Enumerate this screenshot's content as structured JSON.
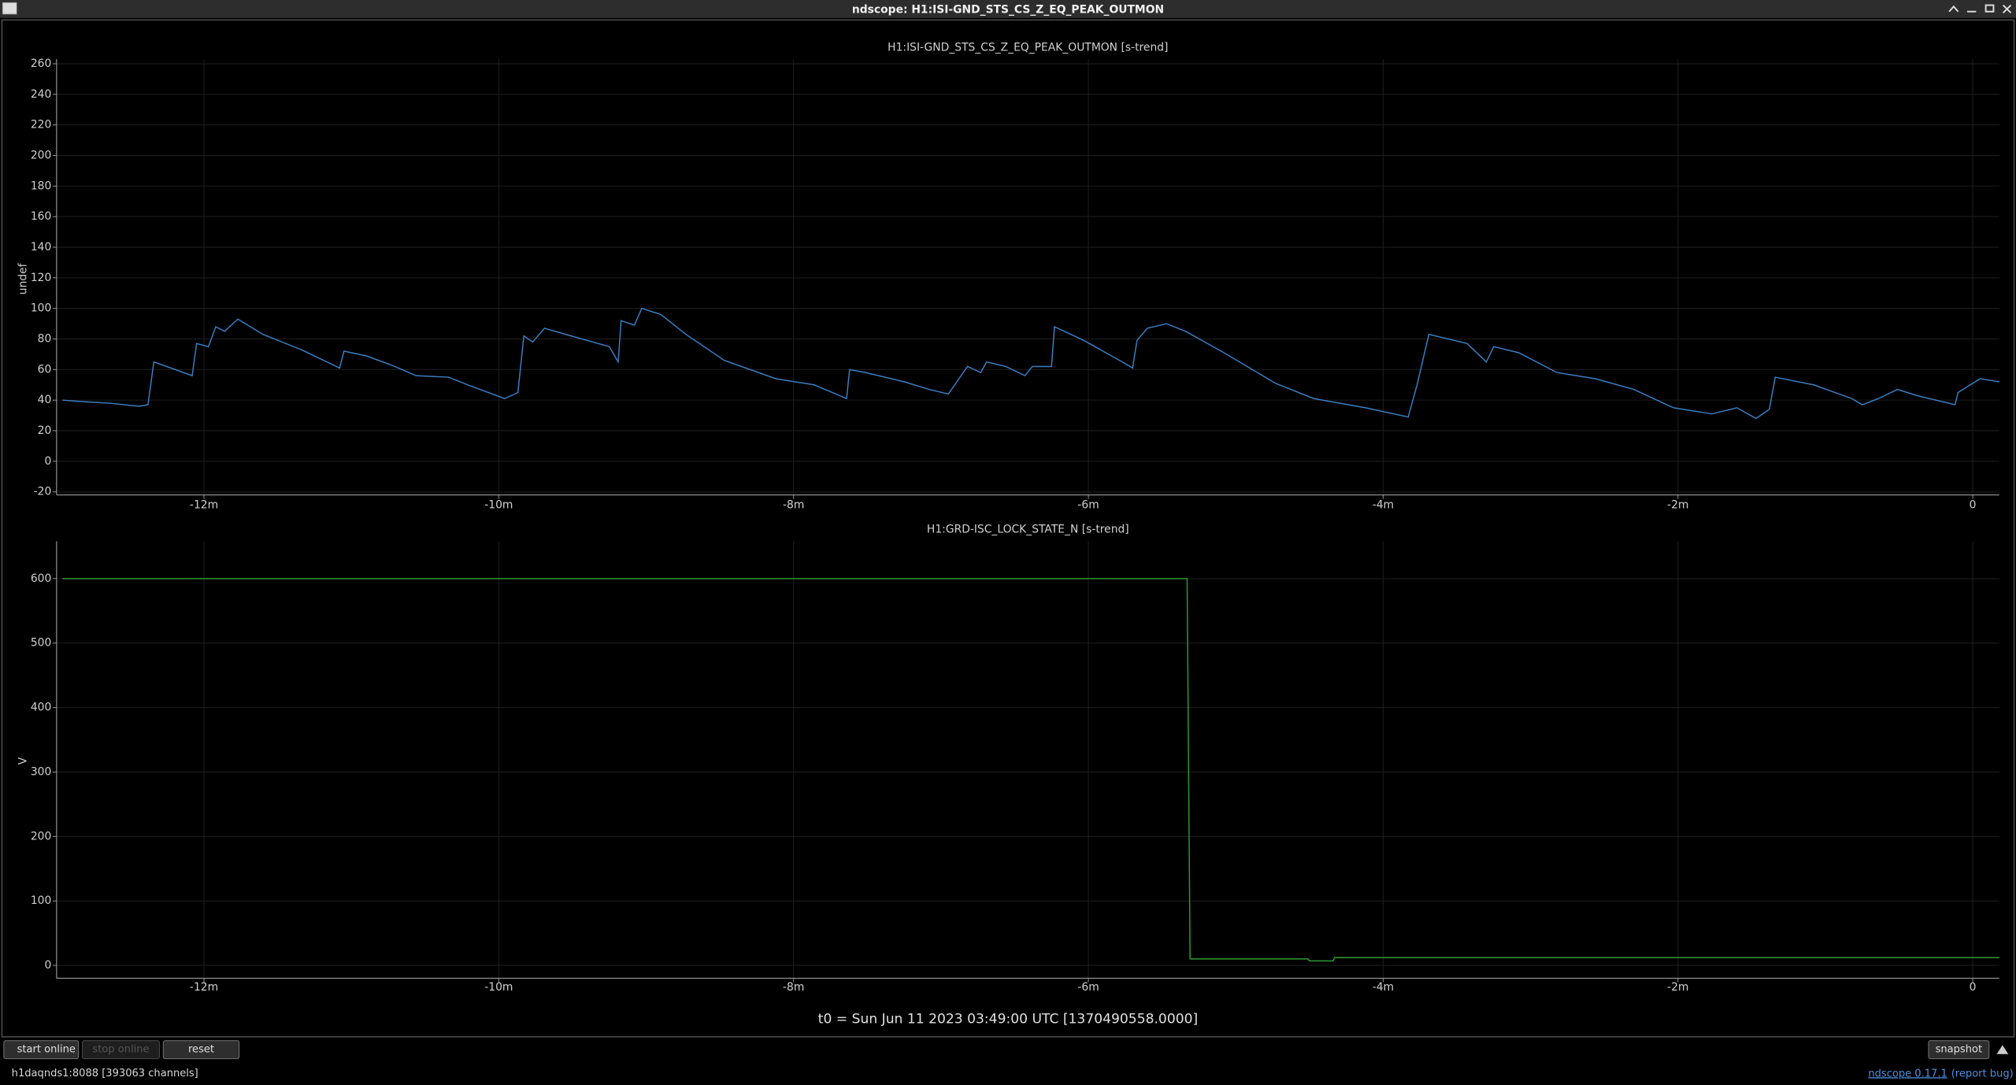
{
  "window": {
    "title": "ndscope: H1:ISI-GND_STS_CS_Z_EQ_PEAK_OUTMON"
  },
  "chart_data": [
    {
      "type": "line",
      "title": "H1:ISI-GND_STS_CS_Z_EQ_PEAK_OUTMON [s-trend]",
      "ylabel": "undef",
      "x": [
        -12.96,
        -12.82,
        -12.64,
        -12.44,
        -12.38,
        -12.34,
        -12.08,
        -12.05,
        -11.97,
        -11.92,
        -11.86,
        -11.77,
        -11.6,
        -11.34,
        -11.08,
        -11.05,
        -10.9,
        -10.73,
        -10.56,
        -10.34,
        -10.21,
        -9.96,
        -9.87,
        -9.83,
        -9.77,
        -9.69,
        -9.51,
        -9.25,
        -9.19,
        -9.17,
        -9.08,
        -9.03,
        -8.9,
        -8.73,
        -8.47,
        -8.12,
        -7.86,
        -7.64,
        -7.62,
        -7.51,
        -7.25,
        -7.08,
        -6.95,
        -6.82,
        -6.73,
        -6.69,
        -6.56,
        -6.43,
        -6.38,
        -6.25,
        -6.23,
        -6.03,
        -5.77,
        -5.7,
        -5.67,
        -5.6,
        -5.47,
        -5.34,
        -5.08,
        -4.73,
        -4.47,
        -4.12,
        -3.83,
        -3.77,
        -3.69,
        -3.43,
        -3.3,
        -3.25,
        -3.08,
        -2.82,
        -2.56,
        -2.3,
        -2.03,
        -1.77,
        -1.6,
        -1.47,
        -1.38,
        -1.34,
        -1.08,
        -0.82,
        -0.75,
        -0.64,
        -0.51,
        -0.38,
        -0.12,
        -0.1,
        0.05,
        0.18
      ],
      "series": [
        {
          "color": "#3a7fc4",
          "values": [
            40,
            39,
            38,
            36,
            37,
            65,
            56,
            77,
            75,
            88,
            85,
            93,
            83,
            73,
            61,
            72,
            69,
            63,
            56,
            55,
            50,
            41,
            45,
            82,
            78,
            87,
            82,
            75,
            65,
            92,
            89,
            100,
            96,
            83,
            66,
            54,
            50,
            41,
            60,
            58,
            52,
            47,
            44,
            62,
            58,
            65,
            62,
            56,
            62,
            62,
            88,
            79,
            65,
            61,
            79,
            87,
            90,
            85,
            71,
            51,
            41,
            35,
            29,
            50,
            83,
            77,
            65,
            75,
            71,
            58,
            54,
            47,
            35,
            31,
            35,
            28,
            34,
            55,
            50,
            41,
            37,
            41,
            47,
            43,
            37,
            45,
            54,
            52
          ]
        }
      ],
      "xlim": [
        -13,
        0.18
      ],
      "ylim": [
        -22,
        263
      ],
      "xticks": [
        {
          "value": -12,
          "label": "-12m"
        },
        {
          "value": -10,
          "label": "-10m"
        },
        {
          "value": -8,
          "label": "-8m"
        },
        {
          "value": -6,
          "label": "-6m"
        },
        {
          "value": -4,
          "label": "-4m"
        },
        {
          "value": -2,
          "label": "-2m"
        },
        0
      ],
      "yticks": [
        -20,
        0,
        20,
        40,
        60,
        80,
        100,
        120,
        140,
        160,
        180,
        200,
        220,
        240,
        260
      ],
      "grid": true
    },
    {
      "type": "line",
      "title": "H1:GRD-ISC_LOCK_STATE_N [s-trend]",
      "ylabel": "V",
      "x": [
        -12.96,
        -5.33,
        -5.31,
        -4.51,
        -4.5,
        -4.34,
        -4.33,
        0.18
      ],
      "series": [
        {
          "color": "#2f9a2f",
          "values": [
            600,
            600,
            10,
            10,
            7,
            7,
            12,
            12
          ]
        }
      ],
      "xlim": [
        -13,
        0.18
      ],
      "ylim": [
        -20,
        658
      ],
      "xticks": [
        {
          "value": -12,
          "label": "-12m"
        },
        {
          "value": -10,
          "label": "-10m"
        },
        {
          "value": -8,
          "label": "-8m"
        },
        {
          "value": -6,
          "label": "-6m"
        },
        {
          "value": -4,
          "label": "-4m"
        },
        {
          "value": -2,
          "label": "-2m"
        },
        0
      ],
      "yticks": [
        0,
        100,
        200,
        300,
        400,
        500,
        600
      ],
      "grid": true
    }
  ],
  "footer": {
    "t0": "t0 = Sun Jun 11 2023 03:49:00 UTC [1370490558.0000]",
    "buttons": [
      "start online",
      "stop online",
      "reset",
      "snapshot"
    ],
    "status": "h1daqnds1:8088  [393063 channels]",
    "version": "ndscope 0.17.1",
    "report": "(report bug)"
  }
}
